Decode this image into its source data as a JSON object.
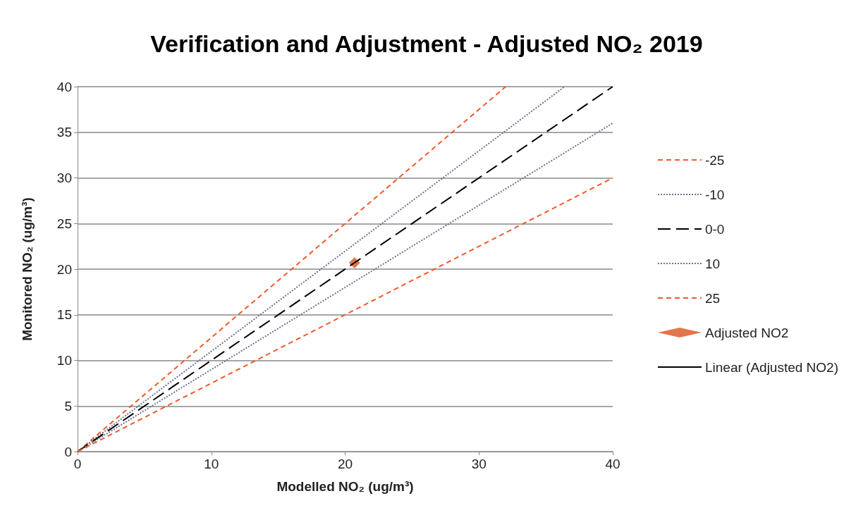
{
  "chart_data": {
    "type": "line",
    "title": "Verification and Adjustment - Adjusted NO₂ 2019",
    "xlabel": "Modelled NO₂ (ug/m³)",
    "ylabel": "Monitored NO₂ (ug/m³)",
    "xlim": [
      0,
      40
    ],
    "xticks": [
      0,
      10,
      20,
      30,
      40
    ],
    "ylim": [
      0,
      40
    ],
    "yticks": [
      0,
      5,
      10,
      15,
      20,
      25,
      30,
      35,
      40
    ],
    "grid": "y",
    "legend": "right",
    "series": [
      {
        "name": "-25",
        "color": "#f05a28",
        "line_style": "dashed",
        "x": [
          0,
          32
        ],
        "values": [
          0,
          40
        ]
      },
      {
        "name": "-10",
        "color": "#6a7490",
        "line_style": "dotted",
        "x": [
          0,
          36.4
        ],
        "values": [
          0,
          40
        ]
      },
      {
        "name": "0-0",
        "color": "#000000",
        "line_style": "longdash",
        "x": [
          0,
          40
        ],
        "values": [
          0,
          40
        ]
      },
      {
        "name": "10",
        "color": "#6a7490",
        "line_style": "dotted",
        "x": [
          0,
          40
        ],
        "values": [
          0,
          36
        ]
      },
      {
        "name": "25",
        "color": "#f05a28",
        "line_style": "dashed",
        "x": [
          0,
          40
        ],
        "values": [
          0,
          30
        ]
      },
      {
        "name": "Adjusted NO2",
        "type": "scatter",
        "marker": "diamond",
        "color": "#d9541e",
        "x": [
          20.7
        ],
        "values": [
          20.7
        ]
      },
      {
        "name": "Linear (Adjusted NO2)",
        "color": "#000000",
        "line_style": "solid"
      }
    ]
  }
}
